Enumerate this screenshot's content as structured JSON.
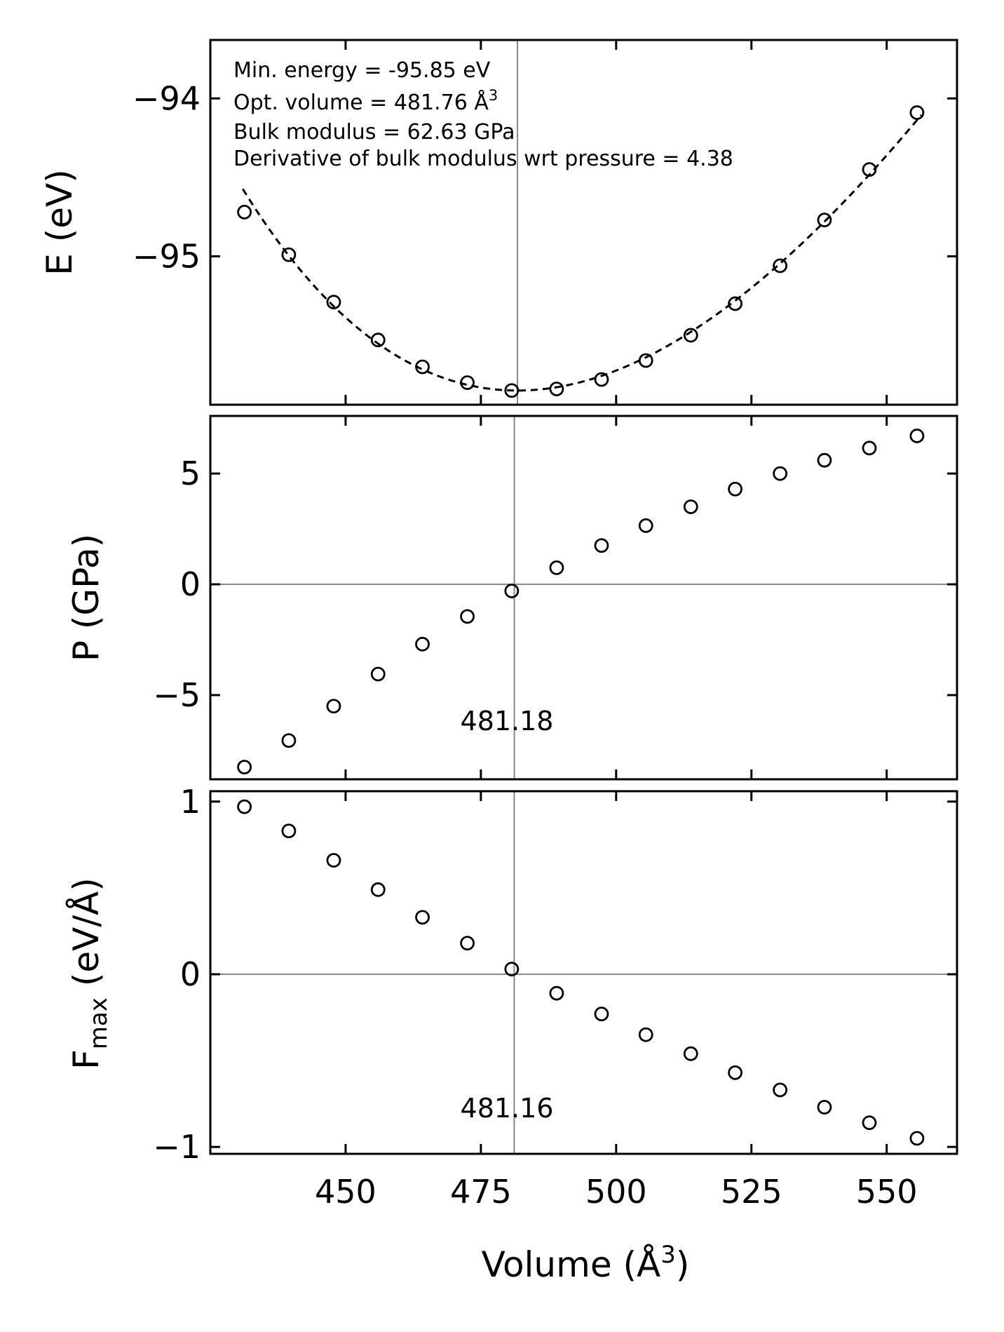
{
  "chart_data": [
    {
      "type": "scatter",
      "panel": "energy",
      "ylabel": "E (eV)",
      "xlim": [
        425,
        563
      ],
      "ylim": [
        -95.94,
        -93.63
      ],
      "yticks": [
        -95,
        -94
      ],
      "ytick_labels": [
        "−95",
        "−94"
      ],
      "vline_x": 481.76,
      "annotations": [
        "Min. energy = -95.85 eV",
        "Opt. volume = 481.76 Å",
        "Bulk modulus = 62.63 GPa",
        "Derivative of bulk modulus wrt pressure = 4.38"
      ],
      "annotation_superscript": "3",
      "fit": {
        "style": "dashed",
        "E0": -95.85,
        "V0": 481.76,
        "B0_GPa": 62.63,
        "B0_prime": 4.38,
        "x_range": [
          431,
          556.4
        ]
      },
      "series": [
        {
          "marker": "open-circle",
          "x": [
            431.3,
            439.5,
            447.8,
            456.0,
            464.2,
            472.5,
            480.7,
            489.0,
            497.3,
            505.5,
            513.8,
            522.0,
            530.3,
            538.5,
            546.8,
            555.6
          ],
          "y": [
            -94.72,
            -94.99,
            -95.29,
            -95.53,
            -95.7,
            -95.8,
            -95.85,
            -95.84,
            -95.78,
            -95.66,
            -95.5,
            -95.3,
            -95.06,
            -94.77,
            -94.45,
            -94.09
          ]
        }
      ]
    },
    {
      "type": "scatter",
      "panel": "pressure",
      "ylabel": "P (GPa)",
      "xlim": [
        425,
        563
      ],
      "ylim": [
        -8.8,
        7.6
      ],
      "yticks": [
        -5,
        0,
        5
      ],
      "ytick_labels": [
        "−5",
        "0",
        "5"
      ],
      "vline_x": 481.18,
      "vline_label": "481.18",
      "series": [
        {
          "marker": "open-circle",
          "x": [
            431.3,
            439.5,
            447.8,
            456.0,
            464.2,
            472.5,
            480.7,
            489.0,
            497.3,
            505.5,
            513.8,
            522.0,
            530.3,
            538.5,
            546.8,
            555.6
          ],
          "y": [
            -8.25,
            -7.05,
            -5.5,
            -4.05,
            -2.7,
            -1.45,
            -0.3,
            0.75,
            1.75,
            2.65,
            3.5,
            4.3,
            5.0,
            5.6,
            6.15,
            6.7
          ]
        }
      ]
    },
    {
      "type": "scatter",
      "panel": "force",
      "ylabel": "F",
      "ylabel_subscript": "max",
      "ylabel_units": " (eV/Å)",
      "xlabel": "Volume (Å",
      "xlabel_superscript": "3",
      "xlabel_close": ")",
      "xlim": [
        425,
        563
      ],
      "ylim": [
        -1.04,
        1.06
      ],
      "yticks": [
        -1,
        0,
        1
      ],
      "ytick_labels": [
        "−1",
        "0",
        "1"
      ],
      "xticks": [
        450,
        475,
        500,
        525,
        550
      ],
      "xtick_labels": [
        "450",
        "475",
        "500",
        "525",
        "550"
      ],
      "vline_x": 481.16,
      "vline_label": "481.16",
      "series": [
        {
          "marker": "open-circle",
          "x": [
            431.3,
            439.5,
            447.8,
            456.0,
            464.2,
            472.5,
            480.7,
            489.0,
            497.3,
            505.5,
            513.8,
            522.0,
            530.3,
            538.5,
            546.8,
            555.6
          ],
          "y": [
            0.97,
            0.83,
            0.66,
            0.49,
            0.33,
            0.18,
            0.03,
            -0.11,
            -0.23,
            -0.35,
            -0.46,
            -0.57,
            -0.67,
            -0.77,
            -0.86,
            -0.95
          ]
        }
      ]
    }
  ]
}
